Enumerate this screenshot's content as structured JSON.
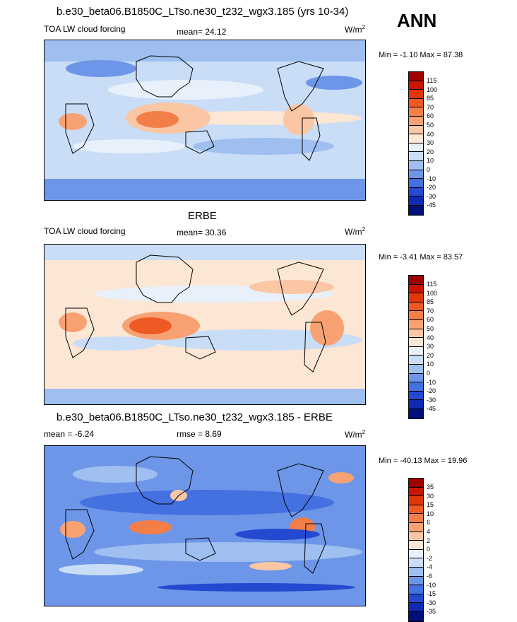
{
  "season": "ANN",
  "panels": [
    {
      "title": "b.e30_beta06.B1850C_LTso.ne30_t232_wgx3.185 (yrs 10-34)",
      "left": "TOA LW cloud forcing",
      "middle": "mean=  24.12",
      "units": "W/m",
      "units_sup": "2",
      "minmax": "Min =  -1.10 Max =  87.38",
      "colorbar": {
        "labels": [
          "115",
          "100",
          "85",
          "70",
          "60",
          "50",
          "40",
          "30",
          "20",
          "10",
          "0",
          "-10",
          "-20",
          "-30",
          "-45"
        ],
        "colors": [
          "#9e0000",
          "#c81400",
          "#e0380a",
          "#ee5a24",
          "#f47e48",
          "#f8a274",
          "#fac6a4",
          "#fce6d4",
          "#e8f1fb",
          "#c9ddf6",
          "#9ebff0",
          "#6d96e8",
          "#4470e0",
          "#2449d0",
          "#0f2ab0",
          "#00107a"
        ]
      }
    },
    {
      "title": "ERBE",
      "left": "TOA LW cloud forcing",
      "middle": "mean=  30.36",
      "units": "W/m",
      "units_sup": "2",
      "minmax": "Min =  -3.41 Max =  83.57",
      "colorbar": {
        "labels": [
          "115",
          "100",
          "85",
          "70",
          "60",
          "50",
          "40",
          "30",
          "20",
          "10",
          "0",
          "-10",
          "-20",
          "-30",
          "-45"
        ],
        "colors": [
          "#9e0000",
          "#c81400",
          "#e0380a",
          "#ee5a24",
          "#f47e48",
          "#f8a274",
          "#fac6a4",
          "#fce6d4",
          "#e8f1fb",
          "#c9ddf6",
          "#9ebff0",
          "#6d96e8",
          "#4470e0",
          "#2449d0",
          "#0f2ab0",
          "#00107a"
        ]
      }
    },
    {
      "title": "b.e30_beta06.B1850C_LTso.ne30_t232_wgx3.185 - ERBE",
      "left": "mean =  -6.24",
      "middle": "rmse =   8.69",
      "units": "W/m",
      "units_sup": "2",
      "minmax": "Min = -40.13 Max =  19.96",
      "colorbar": {
        "labels": [
          "35",
          "30",
          "15",
          "10",
          "6",
          "4",
          "2",
          "0",
          "-2",
          "-4",
          "-6",
          "-10",
          "-15",
          "-30",
          "-35"
        ],
        "colors": [
          "#9e0000",
          "#c81400",
          "#e0380a",
          "#ee5a24",
          "#f47e48",
          "#f8a274",
          "#fac6a4",
          "#fce6d4",
          "#e8f1fb",
          "#c9ddf6",
          "#9ebff0",
          "#6d96e8",
          "#4470e0",
          "#2449d0",
          "#0f2ab0",
          "#00107a"
        ]
      }
    }
  ]
}
